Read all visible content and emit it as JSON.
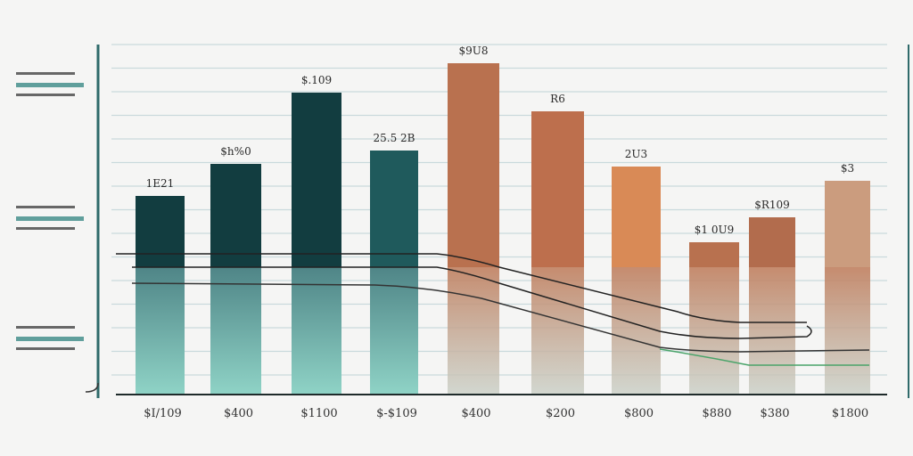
{
  "chart_data": {
    "type": "bar",
    "title": "",
    "xlabel": "",
    "ylabel": "",
    "categories": [
      "$I/109",
      "$400",
      "$1100",
      "$-$109",
      "$400",
      "$200",
      "$800",
      "$880",
      "$380",
      "$1800"
    ],
    "data_labels": [
      "1E21",
      "$h%0",
      "$.109",
      "25.5 2B",
      "$9U8",
      "R6",
      "2U3",
      "$1 0U9",
      "$R109",
      "$3"
    ],
    "values": [
      223,
      259,
      339,
      274,
      372,
      318,
      256,
      171,
      199,
      240
    ],
    "ylim": [
      0,
      400
    ],
    "grid": true,
    "colors": [
      "#123d40",
      "#123d40",
      "#123d40",
      "#1f5a5c",
      "#b9714f",
      "#bd6f4d",
      "#d98a56",
      "#b8714f",
      "#b26c4d",
      "#cb9c7e"
    ]
  }
}
